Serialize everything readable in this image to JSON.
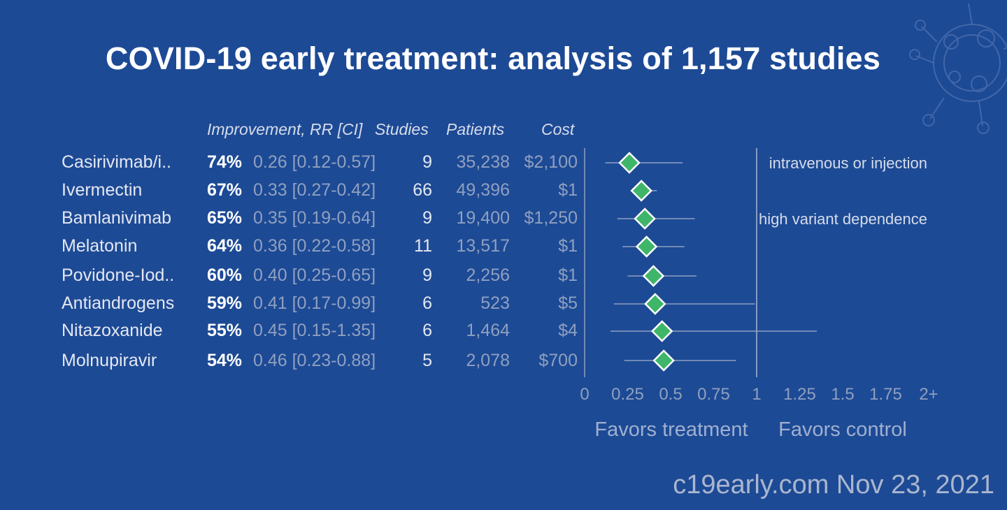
{
  "title": "COVID-19 early treatment: analysis of 1,157 studies",
  "footer": "c19early.com Nov 23, 2021",
  "colors": {
    "background": "#1d4a95",
    "marker": "#3fb56a",
    "axis": "#8fa0c0"
  },
  "chart_data": {
    "type": "forest",
    "columns": {
      "improvement": "Improvement, RR [CI]",
      "studies": "Studies",
      "patients": "Patients",
      "cost": "Cost"
    },
    "rows": [
      {
        "name": "Casirivimab/i..",
        "improvement": "74%",
        "rr_text": "0.26 [0.12-0.57]",
        "rr": 0.26,
        "ci_low": 0.12,
        "ci_high": 0.57,
        "studies": "9",
        "patients": "35,238",
        "cost": "$2,100",
        "note": "intravenous or injection"
      },
      {
        "name": "Ivermectin",
        "improvement": "67%",
        "rr_text": "0.33 [0.27-0.42]",
        "rr": 0.33,
        "ci_low": 0.27,
        "ci_high": 0.42,
        "studies": "66",
        "patients": "49,396",
        "cost": "$1",
        "note": ""
      },
      {
        "name": "Bamlanivimab",
        "improvement": "65%",
        "rr_text": "0.35 [0.19-0.64]",
        "rr": 0.35,
        "ci_low": 0.19,
        "ci_high": 0.64,
        "studies": "9",
        "patients": "19,400",
        "cost": "$1,250",
        "note": "high variant dependence"
      },
      {
        "name": "Melatonin",
        "improvement": "64%",
        "rr_text": "0.36 [0.22-0.58]",
        "rr": 0.36,
        "ci_low": 0.22,
        "ci_high": 0.58,
        "studies": "11",
        "patients": "13,517",
        "cost": "$1",
        "note": ""
      },
      {
        "name": "Povidone-Iod..",
        "improvement": "60%",
        "rr_text": "0.40 [0.25-0.65]",
        "rr": 0.4,
        "ci_low": 0.25,
        "ci_high": 0.65,
        "studies": "9",
        "patients": "2,256",
        "cost": "$1",
        "note": ""
      },
      {
        "name": "Antiandrogens",
        "improvement": "59%",
        "rr_text": "0.41 [0.17-0.99]",
        "rr": 0.41,
        "ci_low": 0.17,
        "ci_high": 0.99,
        "studies": "6",
        "patients": "523",
        "cost": "$5",
        "note": ""
      },
      {
        "name": "Nitazoxanide",
        "improvement": "55%",
        "rr_text": "0.45 [0.15-1.35]",
        "rr": 0.45,
        "ci_low": 0.15,
        "ci_high": 1.35,
        "studies": "6",
        "patients": "1,464",
        "cost": "$4",
        "note": ""
      },
      {
        "name": "Molnupiravir",
        "improvement": "54%",
        "rr_text": "0.46 [0.23-0.88]",
        "rr": 0.46,
        "ci_low": 0.23,
        "ci_high": 0.88,
        "studies": "5",
        "patients": "2,078",
        "cost": "$700",
        "note": ""
      }
    ],
    "x_ticks": [
      {
        "value": 0,
        "label": "0"
      },
      {
        "value": 0.25,
        "label": "0.25"
      },
      {
        "value": 0.5,
        "label": "0.5"
      },
      {
        "value": 0.75,
        "label": "0.75"
      },
      {
        "value": 1,
        "label": "1"
      },
      {
        "value": 1.25,
        "label": "1.25"
      },
      {
        "value": 1.5,
        "label": "1.5"
      },
      {
        "value": 1.75,
        "label": "1.75"
      },
      {
        "value": 2,
        "label": "2+"
      }
    ],
    "xlim": [
      0,
      2
    ],
    "reference_line": 1,
    "x_labels": {
      "left": "Favors treatment",
      "right": "Favors control"
    }
  }
}
